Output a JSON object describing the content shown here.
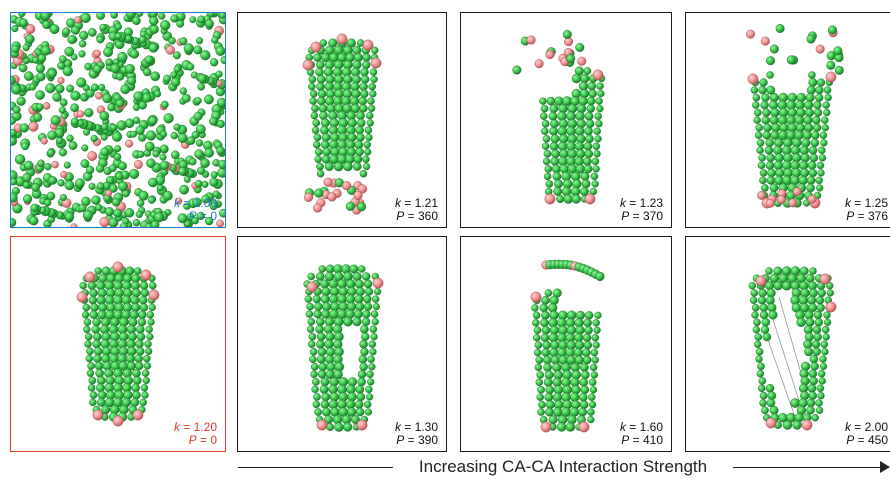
{
  "colors": {
    "subunit_green": "#39c84a",
    "pentamer_pink": "#ec8f8f",
    "free_state_blue": "#1f78c6",
    "reference_red": "#e6392b",
    "frame_black": "#1a1a1a"
  },
  "panels": [
    {
      "id": "a",
      "k": "1.00",
      "P": "0",
      "shape": "dispersed",
      "highlight": "blue"
    },
    {
      "id": "b",
      "k": "1.21",
      "P": "360",
      "shape": "cone_open_bottom",
      "highlight": "none"
    },
    {
      "id": "c",
      "k": "1.23",
      "P": "370",
      "shape": "cone_open_top",
      "highlight": "none"
    },
    {
      "id": "d",
      "k": "1.25",
      "P": "376",
      "shape": "cone_open_top_wide",
      "highlight": "none"
    },
    {
      "id": "e",
      "k": "1.20",
      "P": "0",
      "shape": "cone_closed",
      "highlight": "red"
    },
    {
      "id": "f",
      "k": "1.30",
      "P": "390",
      "shape": "cone_cracked",
      "highlight": "none"
    },
    {
      "id": "g",
      "k": "1.60",
      "P": "410",
      "shape": "cone_peeled",
      "highlight": "none"
    },
    {
      "id": "h",
      "k": "2.00",
      "P": "450",
      "shape": "cone_split",
      "highlight": "none"
    }
  ],
  "axis_caption": "Increasing CA-CA Interaction Strength",
  "symbols": {
    "k": "k",
    "P": "P",
    "eq": " = "
  }
}
